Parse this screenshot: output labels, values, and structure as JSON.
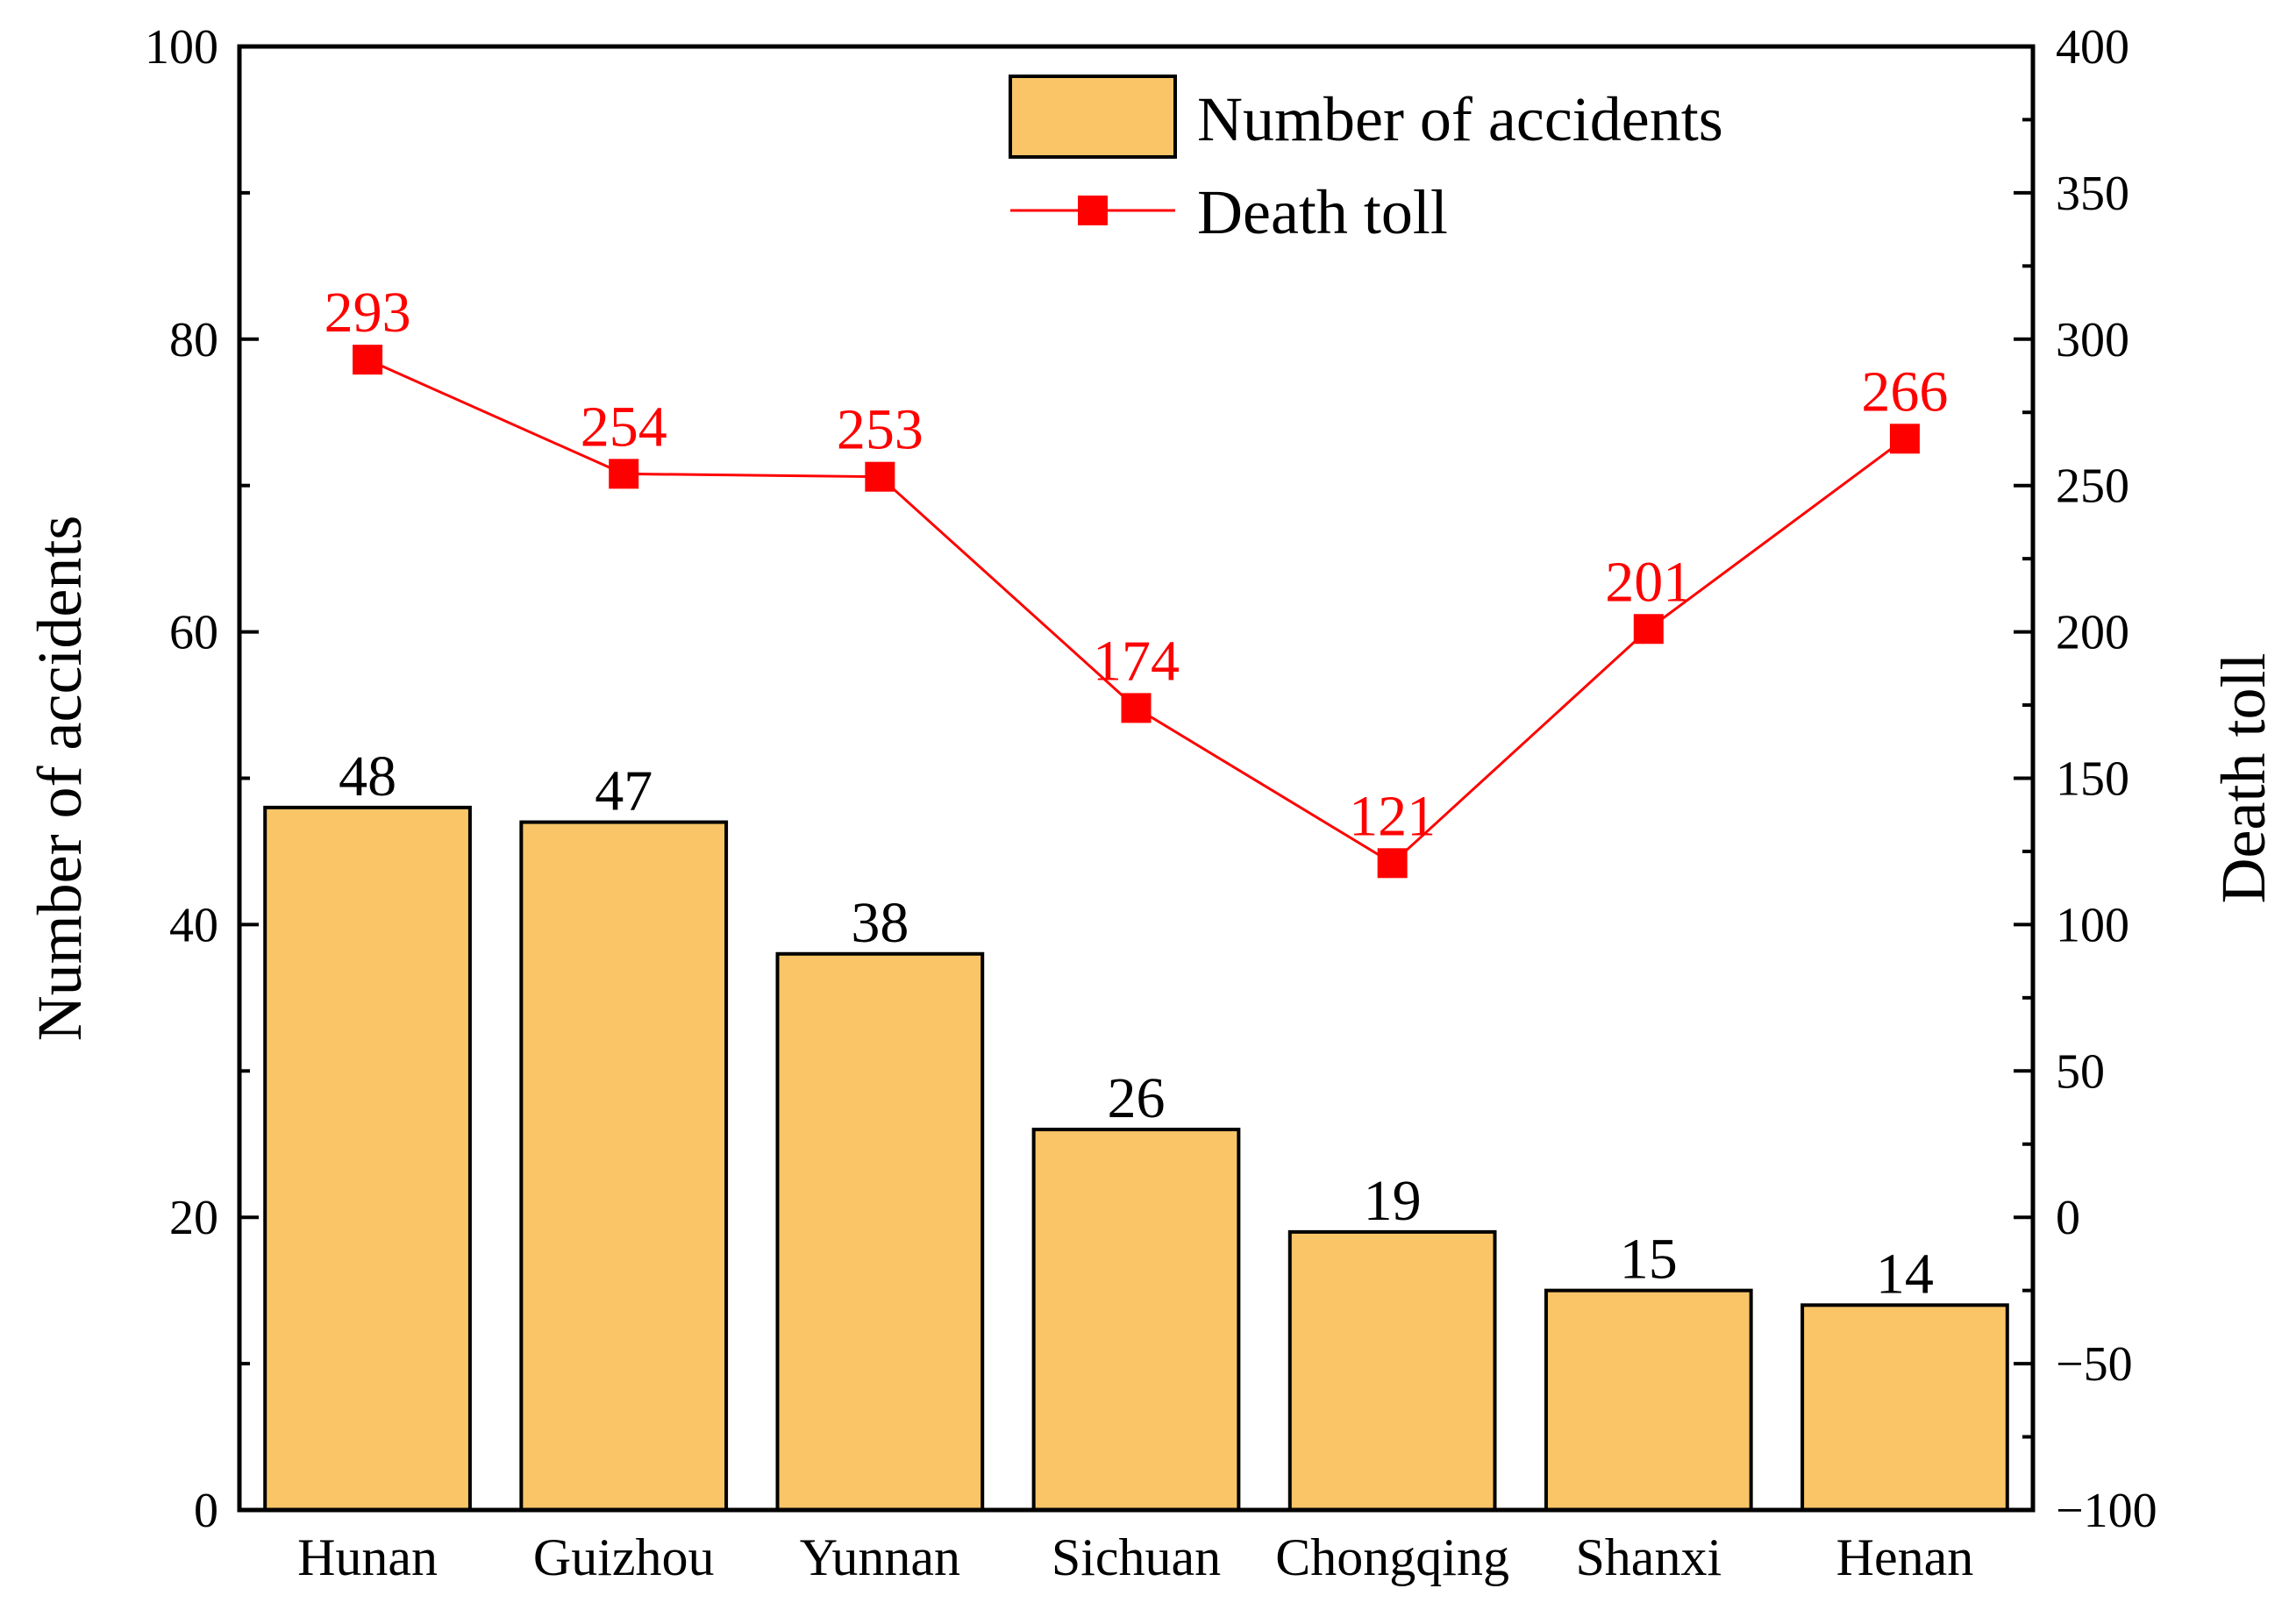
{
  "chart_data": {
    "type": "bar",
    "categories": [
      "Hunan",
      "Guizhou",
      "Yunnan",
      "Sichuan",
      "Chongqing",
      "Shanxi",
      "Henan"
    ],
    "series": [
      {
        "name": "Number of accidents",
        "type": "bar",
        "axis": "left",
        "values": [
          48,
          47,
          38,
          26,
          19,
          15,
          14
        ],
        "color": "#F9C567"
      },
      {
        "name": "Death toll",
        "type": "line",
        "axis": "right",
        "values": [
          293,
          254,
          253,
          174,
          121,
          201,
          266
        ],
        "color": "#FF0000"
      }
    ],
    "ylabel_left": "Number of accidents",
    "ylabel_right": "Death toll",
    "ylim_left": [
      0,
      100
    ],
    "ylim_right": [
      -100,
      400
    ],
    "yticks_left": [
      "0",
      "20",
      "40",
      "60",
      "80",
      "100"
    ],
    "yticks_right": [
      "−100",
      "−50",
      "0",
      "50",
      "100",
      "150",
      "200",
      "250",
      "300",
      "350",
      "400"
    ],
    "legend": {
      "position": "top-right",
      "entries": [
        "Number of accidents",
        "Death toll"
      ]
    },
    "grid": false
  }
}
